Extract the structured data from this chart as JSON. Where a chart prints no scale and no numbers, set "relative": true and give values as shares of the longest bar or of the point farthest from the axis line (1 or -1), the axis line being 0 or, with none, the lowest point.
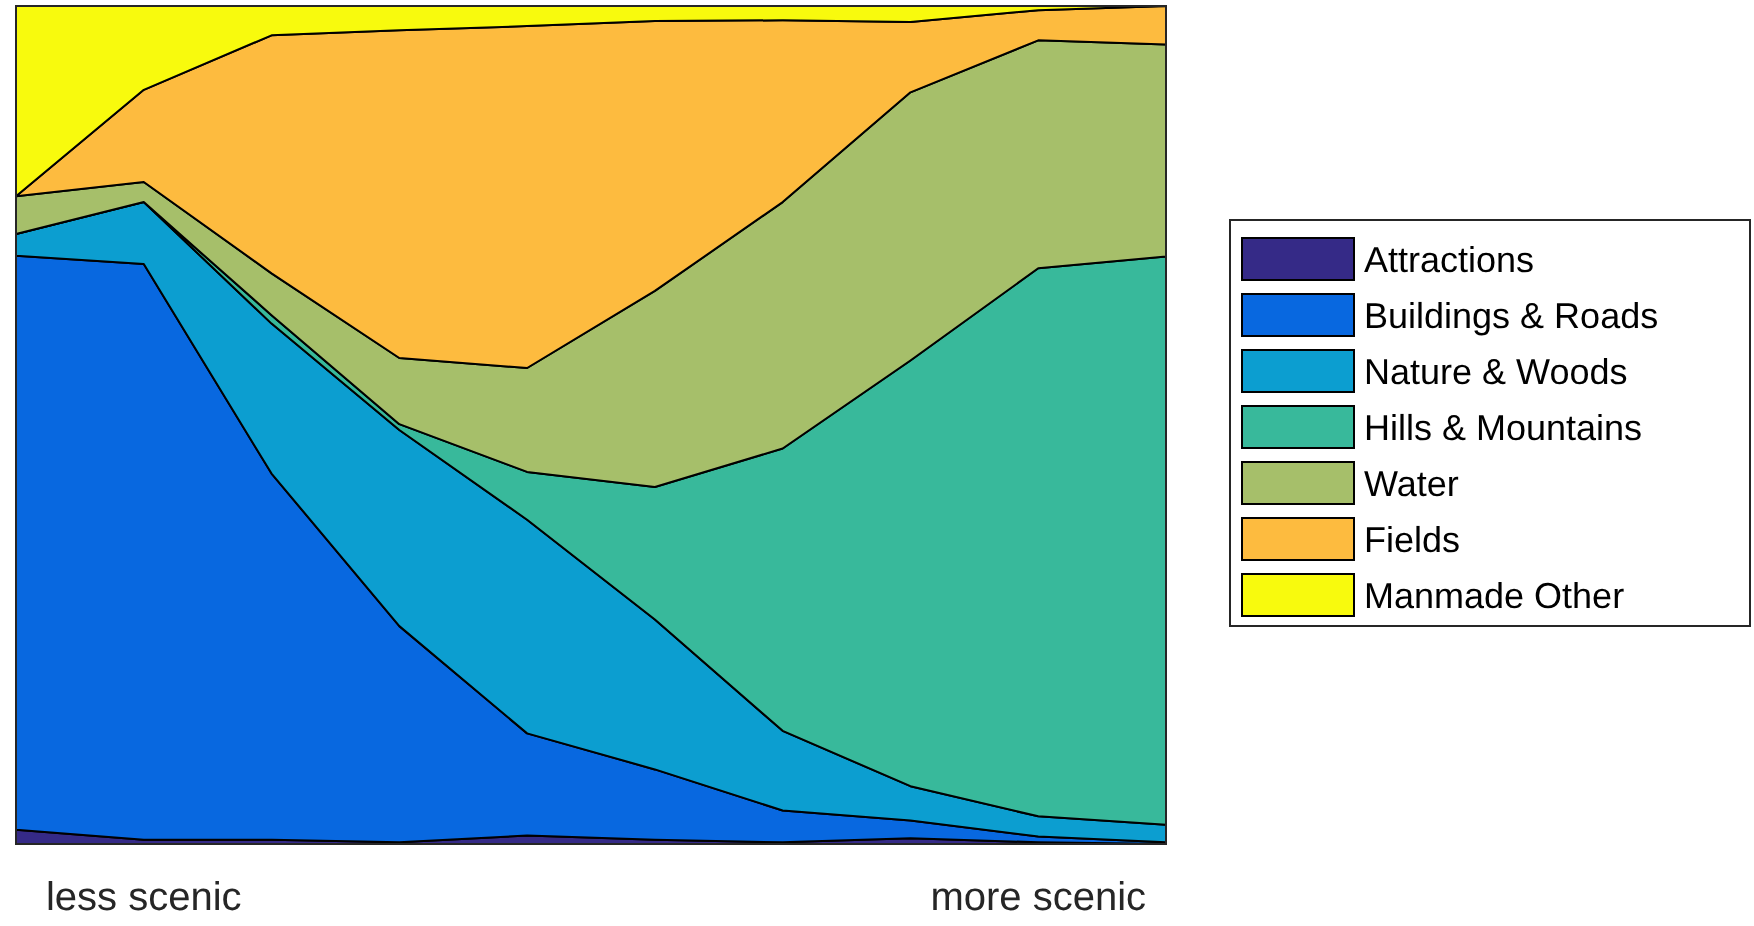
{
  "chart_data": {
    "type": "area",
    "stacked": true,
    "relative": true,
    "legend": "right",
    "categories": [
      null,
      "less scenic",
      null,
      null,
      null,
      null,
      null,
      null,
      "more scenic",
      null
    ],
    "series": [
      {
        "name": "Attractions",
        "color": "#352a87",
        "values": [
          0.017,
          0.005,
          0.005,
          0.002,
          0.01,
          0.005,
          0.002,
          0.007,
          0.002,
          0
        ]
      },
      {
        "name": "Buildings & Roads",
        "color": "#0868e0",
        "values": [
          0.685,
          0.687,
          0.437,
          0.258,
          0.122,
          0.084,
          0.038,
          0.021,
          0.007,
          0.002
        ]
      },
      {
        "name": "Nature & Woods",
        "color": "#0c9ed0",
        "values": [
          0.026,
          0.074,
          0.179,
          0.234,
          0.255,
          0.179,
          0.095,
          0.041,
          0.024,
          0.021
        ]
      },
      {
        "name": "Hills & Mountains",
        "color": "#38b99b",
        "values": [
          0,
          0,
          0.01,
          0.007,
          0.057,
          0.158,
          0.337,
          0.508,
          0.654,
          0.678
        ]
      },
      {
        "name": "Water",
        "color": "#a6bf6a",
        "values": [
          0.045,
          0.024,
          0.05,
          0.079,
          0.124,
          0.234,
          0.294,
          0.32,
          0.272,
          0.253
        ]
      },
      {
        "name": "Fields",
        "color": "#fdbb3f",
        "values": [
          0,
          0.11,
          0.284,
          0.391,
          0.408,
          0.322,
          0.217,
          0.084,
          0.036,
          0.046
        ]
      },
      {
        "name": "Manmade Other",
        "color": "#f8fa0d",
        "values": [
          0.227,
          0.1,
          0.035,
          0.029,
          0.024,
          0.018,
          0.017,
          0.019,
          0.005,
          0
        ]
      }
    ]
  }
}
